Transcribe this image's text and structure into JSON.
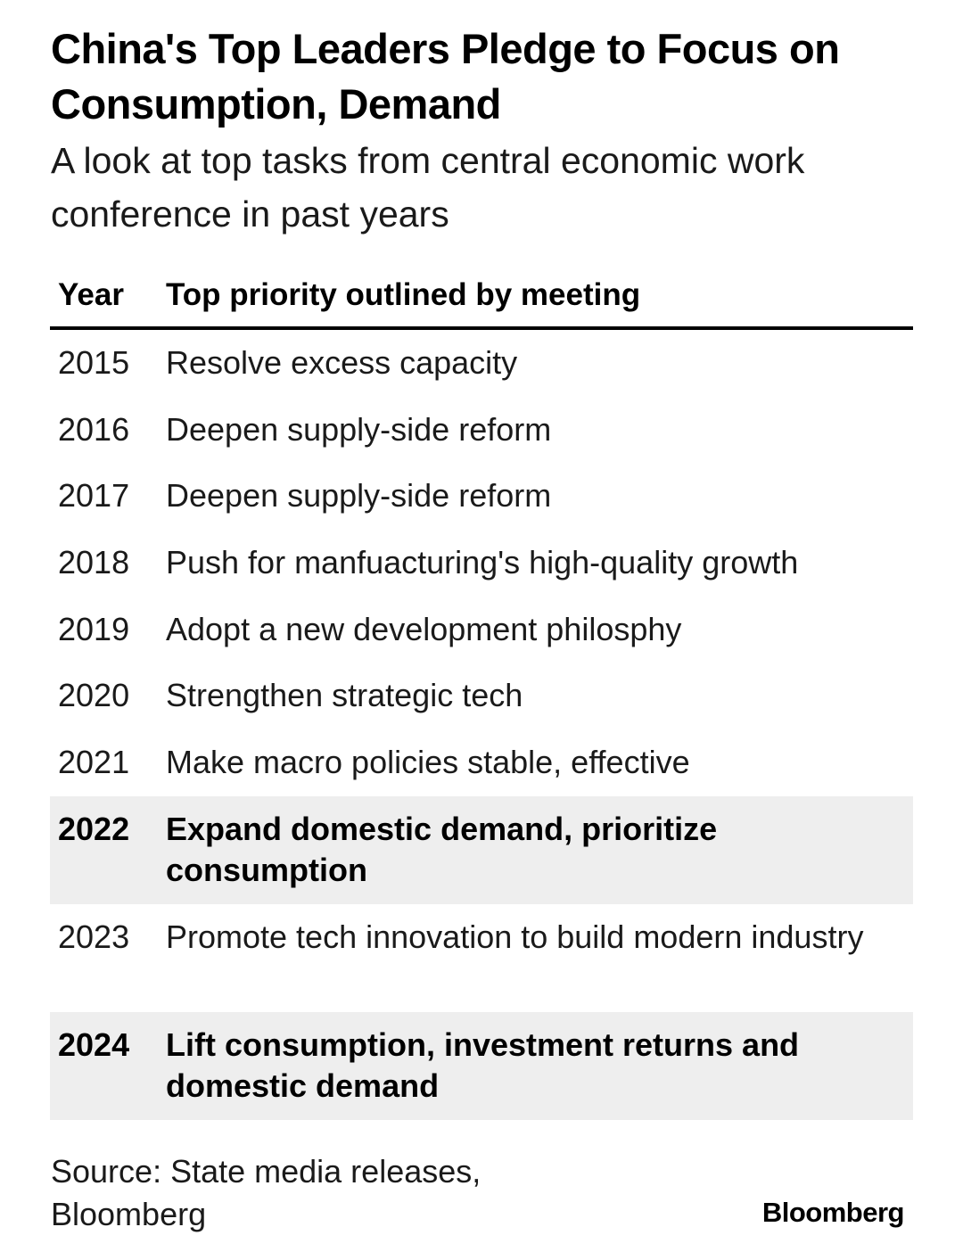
{
  "title": "China's Top Leaders Pledge to Focus on Consumption, Demand",
  "subtitle": "A look at top tasks from central economic work conference in past years",
  "chart_data": {
    "type": "table",
    "columns": [
      "Year",
      "Top priority outlined by meeting"
    ],
    "rows": [
      {
        "year": "2015",
        "priority": "Resolve excess capacity",
        "highlighted": false
      },
      {
        "year": "2016",
        "priority": "Deepen supply-side reform",
        "highlighted": false
      },
      {
        "year": "2017",
        "priority": "Deepen supply-side reform",
        "highlighted": false
      },
      {
        "year": "2018",
        "priority": "Push for manfuacturing's high-quality growth",
        "highlighted": false
      },
      {
        "year": "2019",
        "priority": "Adopt a new development philosphy",
        "highlighted": false
      },
      {
        "year": "2020",
        "priority": "Strengthen strategic tech",
        "highlighted": false
      },
      {
        "year": "2021",
        "priority": "Make macro policies stable, effective",
        "highlighted": false
      },
      {
        "year": "2022",
        "priority": "Expand domestic demand, prioritize consumption",
        "highlighted": true
      },
      {
        "year": "2023",
        "priority": "Promote tech innovation to build modern industry",
        "highlighted": false
      },
      {
        "year": "2024",
        "priority": "Lift consumption, investment returns and domestic demand",
        "highlighted": true
      }
    ],
    "highlight_color": "#eeeeee"
  },
  "source": "Source: State media releases, Bloomberg",
  "brand": "Bloomberg"
}
